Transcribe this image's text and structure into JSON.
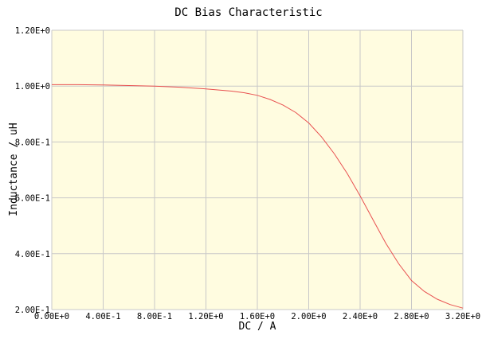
{
  "chart_data": {
    "type": "line",
    "title": "DC Bias Characteristic",
    "xlabel": "DC / A",
    "ylabel": "Inductance / uH",
    "xlim": [
      0,
      3.2
    ],
    "ylim": [
      0.2,
      1.2
    ],
    "x_ticks": [
      0,
      0.4,
      0.8,
      1.2,
      1.6,
      2.0,
      2.4,
      2.8,
      3.2
    ],
    "x_tick_labels": [
      "0.00E+0",
      "4.00E-1",
      "8.00E-1",
      "1.20E+0",
      "1.60E+0",
      "2.00E+0",
      "2.40E+0",
      "2.80E+0",
      "3.20E+0"
    ],
    "y_ticks": [
      0.2,
      0.4,
      0.6,
      0.8,
      1.0,
      1.2
    ],
    "y_tick_labels": [
      "2.00E-1",
      "4.00E-1",
      "6.00E-1",
      "8.00E-1",
      "1.00E+0",
      "1.20E+0"
    ],
    "grid": true,
    "legend": "none",
    "plot_background": "#fffce0",
    "grid_color": "#c8c8c8",
    "line_color": "#e85050",
    "series": [
      {
        "x": [
          0,
          0.2,
          0.4,
          0.6,
          0.8,
          1.0,
          1.2,
          1.4,
          1.5,
          1.6,
          1.7,
          1.8,
          1.9,
          2.0,
          2.1,
          2.2,
          2.3,
          2.4,
          2.5,
          2.6,
          2.7,
          2.8,
          2.9,
          3.0,
          3.1,
          3.2
        ],
        "y": [
          1.005,
          1.005,
          1.004,
          1.002,
          1.0,
          0.996,
          0.99,
          0.982,
          0.976,
          0.967,
          0.952,
          0.932,
          0.905,
          0.868,
          0.818,
          0.757,
          0.687,
          0.607,
          0.522,
          0.437,
          0.364,
          0.304,
          0.265,
          0.237,
          0.218,
          0.205
        ]
      }
    ]
  }
}
